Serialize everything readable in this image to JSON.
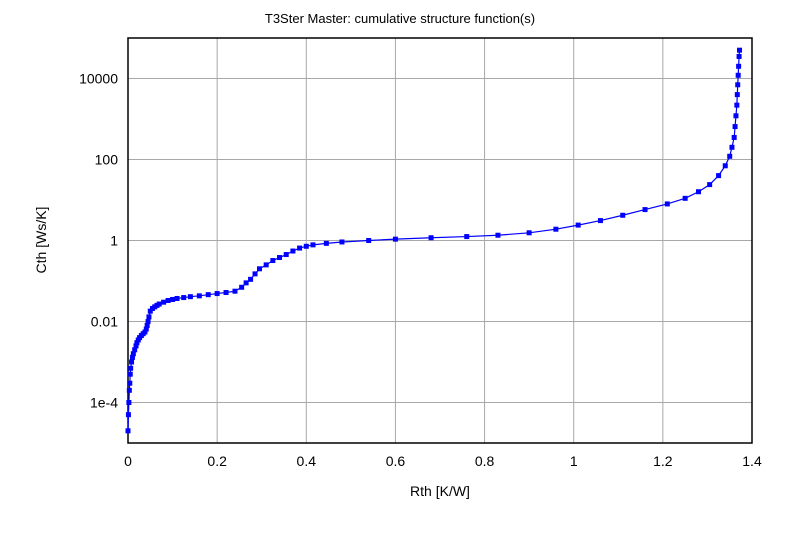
{
  "chart_data": {
    "type": "line",
    "title": "T3Ster Master: cumulative structure function(s)",
    "xlabel": "Rth  [K/W]",
    "ylabel": "Cth  [Ws/K]",
    "xlim": [
      0,
      1.4
    ],
    "ylim": [
      1e-05,
      100000
    ],
    "yscale": "log",
    "grid": true,
    "x_ticks": [
      0,
      0.2,
      0.4,
      0.6,
      0.8,
      1,
      1.2,
      1.4
    ],
    "x_tick_labels": [
      "0",
      "0.2",
      "0.4",
      "0.6",
      "0.8",
      "1",
      "1.2",
      "1.4"
    ],
    "y_ticks": [
      0.0001,
      0.01,
      1,
      100,
      10000
    ],
    "y_tick_labels": [
      "1e-4",
      "0.01",
      "1",
      "100",
      "10000"
    ],
    "series": [
      {
        "color": "#0000ff",
        "marker": "square",
        "x": [
          0,
          0.001,
          0.002,
          0.003,
          0.004,
          0.005,
          0.006,
          0.008,
          0.01,
          0.012,
          0.015,
          0.018,
          0.02,
          0.023,
          0.026,
          0.03,
          0.034,
          0.038,
          0.041,
          0.043,
          0.045,
          0.047,
          0.05,
          0.055,
          0.06,
          0.065,
          0.07,
          0.08,
          0.09,
          0.1,
          0.11,
          0.125,
          0.14,
          0.16,
          0.18,
          0.2,
          0.22,
          0.24,
          0.255,
          0.265,
          0.275,
          0.285,
          0.295,
          0.31,
          0.325,
          0.34,
          0.355,
          0.37,
          0.385,
          0.4,
          0.415,
          0.445,
          0.48,
          0.54,
          0.6,
          0.68,
          0.76,
          0.83,
          0.9,
          0.96,
          1.01,
          1.06,
          1.11,
          1.16,
          1.21,
          1.25,
          1.28,
          1.305,
          1.325,
          1.34,
          1.35,
          1.355,
          1.36,
          1.362,
          1.364,
          1.366,
          1.367,
          1.368,
          1.369,
          1.37,
          1.371,
          1.372
        ],
        "y": [
          2e-05,
          5e-05,
          0.0001,
          0.0002,
          0.0003,
          0.0005,
          0.0007,
          0.001,
          0.0013,
          0.0016,
          0.002,
          0.0025,
          0.003,
          0.0035,
          0.004,
          0.0045,
          0.005,
          0.0055,
          0.0065,
          0.008,
          0.01,
          0.013,
          0.018,
          0.021,
          0.023,
          0.025,
          0.027,
          0.03,
          0.033,
          0.035,
          0.037,
          0.039,
          0.041,
          0.043,
          0.046,
          0.049,
          0.052,
          0.056,
          0.07,
          0.09,
          0.11,
          0.15,
          0.2,
          0.25,
          0.32,
          0.38,
          0.45,
          0.55,
          0.65,
          0.72,
          0.78,
          0.85,
          0.92,
          1.0,
          1.08,
          1.17,
          1.25,
          1.35,
          1.55,
          1.9,
          2.4,
          3.1,
          4.2,
          5.8,
          8.0,
          11.0,
          16.0,
          24.0,
          40.0,
          70.0,
          120.0,
          200.0,
          350.0,
          650.0,
          1200.0,
          2200.0,
          4000.0,
          7000.0,
          12000.0,
          20000.0,
          35000.0,
          50000.0
        ]
      }
    ]
  }
}
